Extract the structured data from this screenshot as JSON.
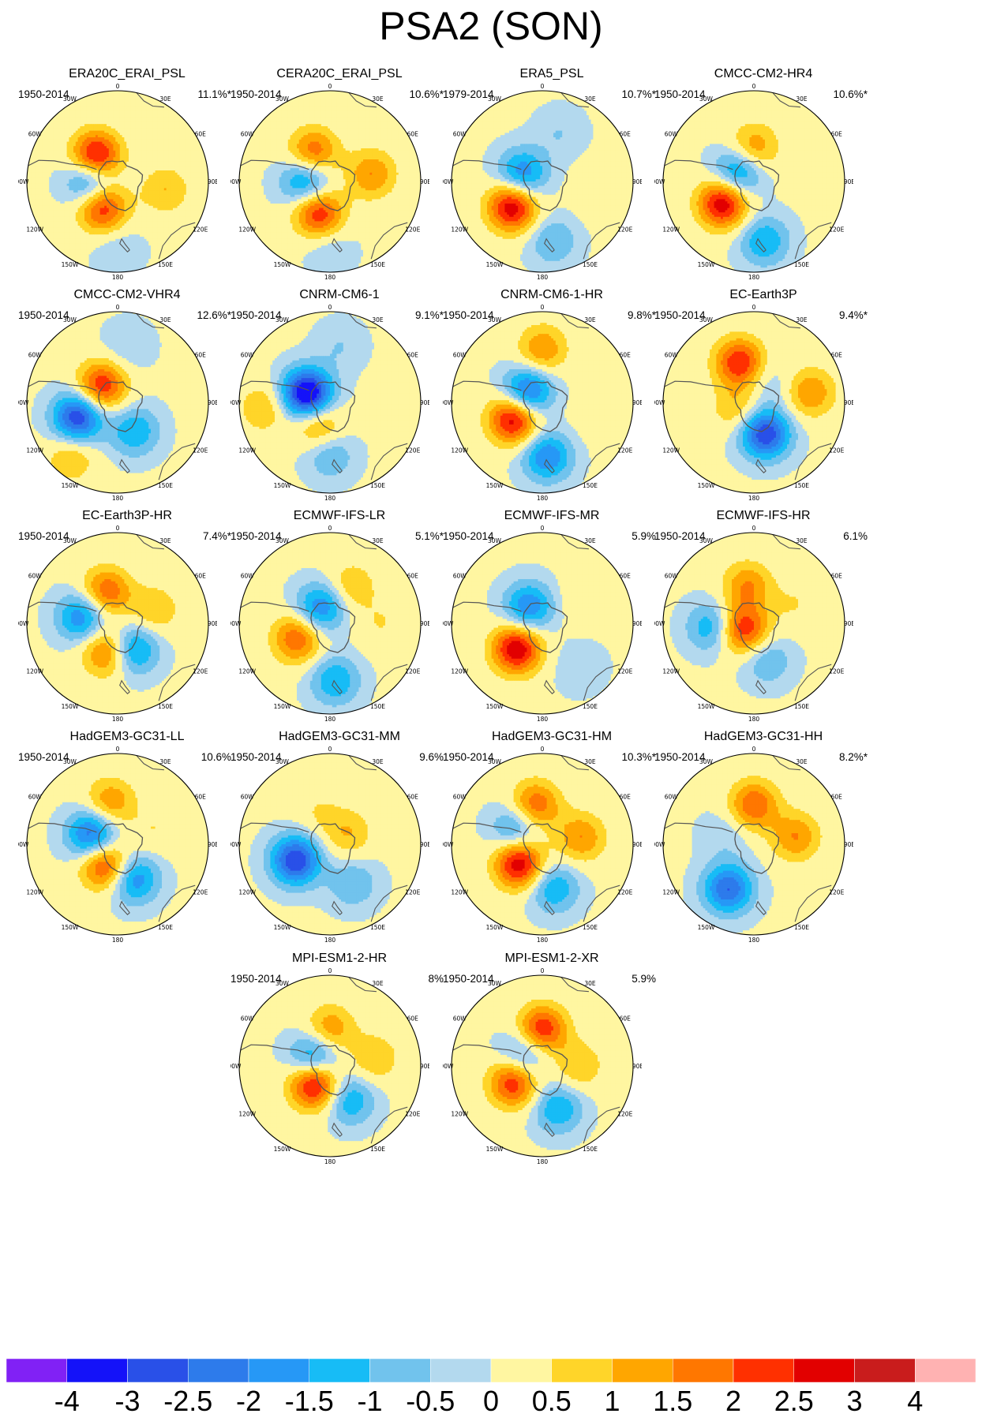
{
  "title": "PSA2 (SON)",
  "longitude_labels": [
    "0",
    "30E",
    "60E",
    "90E",
    "120E",
    "150E",
    "180",
    "150W",
    "120W",
    "90W",
    "60W",
    "30W"
  ],
  "panels": [
    {
      "title": "ERA20C_ERAI_PSL",
      "period": "1950-2014",
      "variance": "11.1%*",
      "anomaly_centers": [
        {
          "lon": -40,
          "colat": 22,
          "value": 3.0
        },
        {
          "lon": -90,
          "colat": 18,
          "value": -2.0
        },
        {
          "lon": -150,
          "colat": 20,
          "value": 2.5
        },
        {
          "lon": 100,
          "colat": 32,
          "value": 1.0
        },
        {
          "lon": 180,
          "colat": 45,
          "value": -0.5
        }
      ]
    },
    {
      "title": "CERA20C_ERAI_PSL",
      "period": "1950-2014",
      "variance": "10.6%*",
      "anomaly_centers": [
        {
          "lon": -30,
          "colat": 22,
          "value": 2.0
        },
        {
          "lon": -90,
          "colat": 16,
          "value": -2.0
        },
        {
          "lon": -160,
          "colat": 22,
          "value": 2.5
        },
        {
          "lon": 80,
          "colat": 28,
          "value": 1.5
        },
        {
          "lon": 180,
          "colat": 45,
          "value": -0.5
        }
      ]
    },
    {
      "title": "ERA5_PSL",
      "period": "1979-2014",
      "variance": "10.7%*",
      "anomaly_centers": [
        {
          "lon": -70,
          "colat": 14,
          "value": -2.0
        },
        {
          "lon": -130,
          "colat": 26,
          "value": 3.0
        },
        {
          "lon": 20,
          "colat": 34,
          "value": -0.5
        },
        {
          "lon": 100,
          "colat": 40,
          "value": 0.5
        },
        {
          "lon": 170,
          "colat": 40,
          "value": -1.0
        }
      ]
    },
    {
      "title": "CMCC-CM2-HR4",
      "period": "1950-2014",
      "variance": "10.6%*",
      "anomaly_centers": [
        {
          "lon": 0,
          "colat": 22,
          "value": 1.5
        },
        {
          "lon": -60,
          "colat": 12,
          "value": -2.0
        },
        {
          "lon": -125,
          "colat": 25,
          "value": 3.0
        },
        {
          "lon": 170,
          "colat": 40,
          "value": -1.5
        }
      ]
    },
    {
      "title": "CMCC-CM2-VHR4",
      "period": "1950-2014",
      "variance": "12.6%*",
      "anomaly_centers": [
        {
          "lon": -45,
          "colat": 15,
          "value": 2.5
        },
        {
          "lon": -110,
          "colat": 28,
          "value": -3.0
        },
        {
          "lon": 150,
          "colat": 22,
          "value": -1.5
        },
        {
          "lon": -140,
          "colat": 48,
          "value": 1.0
        },
        {
          "lon": 10,
          "colat": 38,
          "value": -0.5
        }
      ]
    },
    {
      "title": "CNRM-CM6-1",
      "period": "1950-2014",
      "variance": "9.1%*",
      "anomaly_centers": [
        {
          "lon": -70,
          "colat": 16,
          "value": -4.0
        },
        {
          "lon": -150,
          "colat": 16,
          "value": 1.5
        },
        {
          "lon": 180,
          "colat": 35,
          "value": -1.0
        },
        {
          "lon": -95,
          "colat": 44,
          "value": 1.0
        },
        {
          "lon": 10,
          "colat": 38,
          "value": -0.5
        }
      ]
    },
    {
      "title": "CNRM-CM6-1-HR",
      "period": "1950-2014",
      "variance": "9.8%*",
      "anomaly_centers": [
        {
          "lon": 0,
          "colat": 35,
          "value": 1.5
        },
        {
          "lon": -55,
          "colat": 12,
          "value": -2.5
        },
        {
          "lon": -120,
          "colat": 22,
          "value": 3.0
        },
        {
          "lon": 175,
          "colat": 36,
          "value": -2.0
        },
        {
          "lon": 100,
          "colat": 40,
          "value": 0.5
        }
      ]
    },
    {
      "title": "EC-Earth3P",
      "period": "1950-2014",
      "variance": "9.4%*",
      "anomaly_centers": [
        {
          "lon": -20,
          "colat": 28,
          "value": 2.5
        },
        {
          "lon": -110,
          "colat": 12,
          "value": 1.0
        },
        {
          "lon": 160,
          "colat": 22,
          "value": -3.0
        },
        {
          "lon": 80,
          "colat": 38,
          "value": 1.5
        },
        {
          "lon": 40,
          "colat": 16,
          "value": -0.5
        }
      ]
    },
    {
      "title": "EC-Earth3P-HR",
      "period": "1950-2014",
      "variance": "7.4%*",
      "anomaly_centers": [
        {
          "lon": -20,
          "colat": 22,
          "value": 2.0
        },
        {
          "lon": -80,
          "colat": 24,
          "value": -2.0
        },
        {
          "lon": -160,
          "colat": 20,
          "value": 2.0
        },
        {
          "lon": 150,
          "colat": 20,
          "value": -2.0
        },
        {
          "lon": 70,
          "colat": 26,
          "value": 1.0
        }
      ]
    },
    {
      "title": "ECMWF-IFS-LR",
      "period": "1950-2014",
      "variance": "5.1%*",
      "anomaly_centers": [
        {
          "lon": -30,
          "colat": 12,
          "value": -2.0
        },
        {
          "lon": -115,
          "colat": 24,
          "value": 2.0
        },
        {
          "lon": 175,
          "colat": 38,
          "value": -1.5
        },
        {
          "lon": 30,
          "colat": 28,
          "value": 1.0
        },
        {
          "lon": 90,
          "colat": 34,
          "value": 0.5
        }
      ]
    },
    {
      "title": "ECMWF-IFS-MR",
      "period": "1950-2014",
      "variance": "5.9%",
      "anomaly_centers": [
        {
          "lon": -40,
          "colat": 14,
          "value": -2.0
        },
        {
          "lon": -135,
          "colat": 24,
          "value": 3.0
        },
        {
          "lon": 140,
          "colat": 38,
          "value": -0.5
        },
        {
          "lon": 60,
          "colat": 32,
          "value": 0.5
        }
      ]
    },
    {
      "title": "ECMWF-IFS-HR",
      "period": "1950-2014",
      "variance": "6.1%",
      "anomaly_centers": [
        {
          "lon": -10,
          "colat": 25,
          "value": 1.5
        },
        {
          "lon": -120,
          "colat": 8,
          "value": 2.5
        },
        {
          "lon": -95,
          "colat": 28,
          "value": -1.5
        },
        {
          "lon": 160,
          "colat": 26,
          "value": -1.0
        },
        {
          "lon": 65,
          "colat": 30,
          "value": 0.5
        }
      ]
    },
    {
      "title": "HadGEM3-GC31-LL",
      "period": "1950-2014",
      "variance": "10.6%",
      "anomaly_centers": [
        {
          "lon": -10,
          "colat": 28,
          "value": 1.5
        },
        {
          "lon": -70,
          "colat": 18,
          "value": -2.5
        },
        {
          "lon": -150,
          "colat": 16,
          "value": 2.5
        },
        {
          "lon": 155,
          "colat": 25,
          "value": -2.0
        },
        {
          "lon": 70,
          "colat": 26,
          "value": 0.5
        }
      ]
    },
    {
      "title": "HadGEM3-GC31-MM",
      "period": "1950-2014",
      "variance": "9.6%",
      "anomaly_centers": [
        {
          "lon": -115,
          "colat": 25,
          "value": -3.0
        },
        {
          "lon": -20,
          "colat": 22,
          "value": 0.5
        },
        {
          "lon": 60,
          "colat": 14,
          "value": 1.0
        },
        {
          "lon": 150,
          "colat": 30,
          "value": -1.0
        }
      ]
    },
    {
      "title": "HadGEM3-GC31-HM",
      "period": "1950-2014",
      "variance": "10.3%*",
      "anomaly_centers": [
        {
          "lon": -10,
          "colat": 26,
          "value": 2.0
        },
        {
          "lon": -60,
          "colat": 20,
          "value": -1.5
        },
        {
          "lon": -130,
          "colat": 20,
          "value": 3.0
        },
        {
          "lon": 165,
          "colat": 30,
          "value": -1.5
        },
        {
          "lon": 80,
          "colat": 26,
          "value": 1.5
        }
      ]
    },
    {
      "title": "HadGEM3-GC31-HH",
      "period": "1950-2014",
      "variance": "8.2%*",
      "anomaly_centers": [
        {
          "lon": 0,
          "colat": 26,
          "value": 2.0
        },
        {
          "lon": -150,
          "colat": 34,
          "value": -2.5
        },
        {
          "lon": 80,
          "colat": 28,
          "value": 1.5
        },
        {
          "lon": -70,
          "colat": 20,
          "value": -0.5
        }
      ]
    },
    {
      "title": "MPI-ESM1-2-HR",
      "period": "1950-2014",
      "variance": "8%",
      "anomaly_centers": [
        {
          "lon": 0,
          "colat": 24,
          "value": 1.5
        },
        {
          "lon": -60,
          "colat": 12,
          "value": -2.0
        },
        {
          "lon": -140,
          "colat": 16,
          "value": 3.0
        },
        {
          "lon": 150,
          "colat": 26,
          "value": -1.5
        },
        {
          "lon": 80,
          "colat": 30,
          "value": 1.0
        }
      ]
    },
    {
      "title": "MPI-ESM1-2-XR",
      "period": "1950-2014",
      "variance": "5.9%",
      "anomaly_centers": [
        {
          "lon": 0,
          "colat": 24,
          "value": 2.5
        },
        {
          "lon": -60,
          "colat": 14,
          "value": -1.5
        },
        {
          "lon": -120,
          "colat": 22,
          "value": 2.5
        },
        {
          "lon": 160,
          "colat": 30,
          "value": -1.5
        },
        {
          "lon": 90,
          "colat": 24,
          "value": 1.0
        }
      ]
    }
  ],
  "colorbar": {
    "labels": [
      "-4",
      "-3",
      "-2.5",
      "-2",
      "-1.5",
      "-1",
      "-0.5",
      "0",
      "0.5",
      "1",
      "1.5",
      "2",
      "2.5",
      "3",
      "4"
    ],
    "colors": [
      "#8121F5",
      "#1412F9",
      "#2950E8",
      "#2D7BEB",
      "#2698F6",
      "#17BCF6",
      "#71C3ED",
      "#B3D9EE",
      "#FFF6A1",
      "#FFD529",
      "#FFA600",
      "#FF7700",
      "#FF3000",
      "#E20000",
      "#C91C1C",
      "#FFB2B2"
    ]
  }
}
